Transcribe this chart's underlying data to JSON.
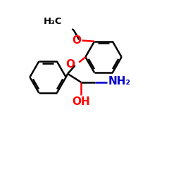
{
  "background_color": "#ffffff",
  "bond_color": "#000000",
  "oxygen_color": "#ff0000",
  "nitrogen_color": "#0000cc",
  "lw": 1.8,
  "figsize": [
    2.5,
    2.5
  ],
  "dpi": 100,
  "xlim": [
    0,
    10
  ],
  "ylim": [
    0,
    10
  ]
}
